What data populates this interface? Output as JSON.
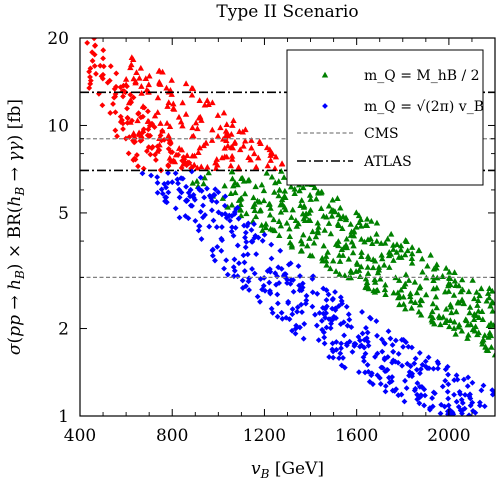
{
  "chart_data": {
    "type": "scatter",
    "title": "Type II Scenario",
    "xlabel": "v_B [GeV]",
    "ylabel": "σ(pp → h_B) × BR(h_B → γγ) [fb]",
    "xlim": [
      400,
      2200
    ],
    "ylim": [
      1,
      20
    ],
    "yscale": "log",
    "x_ticks": [
      400,
      800,
      1200,
      1600,
      2000
    ],
    "y_ticks": [
      1,
      2,
      5,
      10,
      20
    ],
    "grid": false,
    "legend_position": "top-right",
    "series": [
      {
        "name": "m_Q = M_hB / 2",
        "marker": "triangle",
        "color_excluded": "#ff0000",
        "color_allowed": "#008000",
        "band_lower": [
          [
            450,
            13.5
          ],
          [
            600,
            9.8
          ],
          [
            800,
            7.0
          ],
          [
            1000,
            5.5
          ],
          [
            1200,
            4.3
          ],
          [
            1400,
            3.5
          ],
          [
            1600,
            2.85
          ],
          [
            1800,
            2.35
          ],
          [
            2000,
            1.95
          ],
          [
            2200,
            1.62
          ]
        ],
        "band_upper": [
          [
            600,
            21.0
          ],
          [
            800,
            16.0
          ],
          [
            1000,
            11.5
          ],
          [
            1200,
            8.6
          ],
          [
            1400,
            6.6
          ],
          [
            1600,
            5.2
          ],
          [
            1800,
            4.1
          ],
          [
            2000,
            3.3
          ],
          [
            2200,
            2.7
          ]
        ]
      },
      {
        "name": "m_Q = √(2π) v_B",
        "marker": "diamond",
        "color_excluded": "#ff0000",
        "color_allowed": "#0000ff",
        "band_lower": [
          [
            430,
            13.0
          ],
          [
            600,
            8.0
          ],
          [
            800,
            5.0
          ],
          [
            1000,
            3.3
          ],
          [
            1200,
            2.3
          ],
          [
            1400,
            1.75
          ],
          [
            1600,
            1.38
          ],
          [
            1800,
            1.12
          ],
          [
            2000,
            0.96
          ],
          [
            2200,
            0.85
          ]
        ],
        "band_upper": [
          [
            430,
            22.0
          ],
          [
            600,
            14.0
          ],
          [
            800,
            8.8
          ],
          [
            1000,
            6.0
          ],
          [
            1200,
            4.3
          ],
          [
            1400,
            3.1
          ],
          [
            1600,
            2.35
          ],
          [
            1800,
            1.85
          ],
          [
            2000,
            1.48
          ],
          [
            2200,
            1.22
          ]
        ]
      }
    ],
    "reference_lines": [
      {
        "name": "CMS",
        "style": "dashed",
        "color": "#808080",
        "values": [
          9,
          3
        ]
      },
      {
        "name": "ATLAS",
        "style": "dash-dot",
        "color": "#000000",
        "values": [
          13,
          7
        ]
      }
    ],
    "exclusion_threshold": 7
  }
}
